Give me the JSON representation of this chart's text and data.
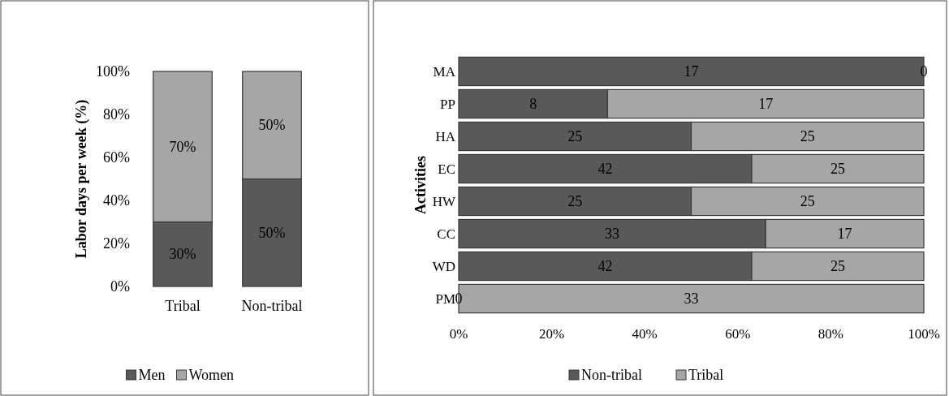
{
  "chart_data": [
    {
      "type": "bar",
      "stacked": true,
      "ylabel": "Labor days per week (%)",
      "categories": [
        "Tribal",
        "Non-tribal"
      ],
      "ylim": [
        0,
        100
      ],
      "yticks": [
        {
          "value": 0,
          "label": "0%"
        },
        {
          "value": 20,
          "label": "20%"
        },
        {
          "value": 40,
          "label": "40%"
        },
        {
          "value": 60,
          "label": "60%"
        },
        {
          "value": 80,
          "label": "80%"
        },
        {
          "value": 100,
          "label": "100%"
        }
      ],
      "legend": "bottom",
      "grid": false,
      "series": [
        {
          "name": "Men",
          "color": "#595959",
          "values": [
            30,
            50
          ],
          "value_labels": [
            "30%",
            "50%"
          ]
        },
        {
          "name": "Women",
          "color": "#a6a6a6",
          "values": [
            70,
            50
          ],
          "value_labels": [
            "70%",
            "50%"
          ]
        }
      ]
    },
    {
      "type": "bar",
      "stacked": true,
      "orientation": "horizontal",
      "ylabel": "Activities",
      "categories": [
        "MA",
        "PP",
        "HA",
        "EC",
        "HW",
        "CC",
        "WD",
        "PM"
      ],
      "xlim": [
        0,
        100
      ],
      "xticks": [
        {
          "value": 0,
          "label": "0%"
        },
        {
          "value": 20,
          "label": "20%"
        },
        {
          "value": 40,
          "label": "40%"
        },
        {
          "value": 60,
          "label": "60%"
        },
        {
          "value": 80,
          "label": "80%"
        },
        {
          "value": 100,
          "label": "100%"
        }
      ],
      "legend": "bottom",
      "grid": false,
      "series": [
        {
          "name": "Non-tribal",
          "color": "#595959",
          "values": [
            100,
            32,
            50,
            63,
            50,
            66,
            63,
            0
          ]
        },
        {
          "name": "Tribal",
          "color": "#a6a6a6",
          "values": [
            0,
            68,
            50,
            37,
            50,
            34,
            37,
            100
          ]
        }
      ],
      "annotations": [
        {
          "text": "17",
          "x": 50,
          "y": "MA"
        },
        {
          "text": "0",
          "x": 100,
          "y": "MA"
        },
        {
          "text": "8",
          "x": 16,
          "y": "PP"
        },
        {
          "text": "17",
          "x": 66,
          "y": "PP"
        },
        {
          "text": "25",
          "x": 25,
          "y": "HA"
        },
        {
          "text": "25",
          "x": 75,
          "y": "HA"
        },
        {
          "text": "42",
          "x": 31.5,
          "y": "EC"
        },
        {
          "text": "25",
          "x": 81.5,
          "y": "EC"
        },
        {
          "text": "25",
          "x": 25,
          "y": "HW"
        },
        {
          "text": "25",
          "x": 75,
          "y": "HW"
        },
        {
          "text": "33",
          "x": 33,
          "y": "CC"
        },
        {
          "text": "17",
          "x": 83,
          "y": "CC"
        },
        {
          "text": "42",
          "x": 31.5,
          "y": "WD"
        },
        {
          "text": "25",
          "x": 81.5,
          "y": "WD"
        },
        {
          "text": "0",
          "x": 0,
          "y": "PM"
        },
        {
          "text": "33",
          "x": 50,
          "y": "PM"
        }
      ]
    }
  ]
}
